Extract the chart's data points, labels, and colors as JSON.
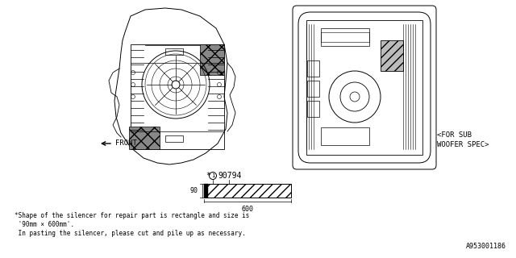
{
  "bg_color": "#ffffff",
  "spec_label_line1": "<FOR SUB",
  "spec_label_line2": "WOOFER SPEC>",
  "dim_width_label": "600",
  "dim_height_label": "90",
  "part_number_text": "*(1)90794",
  "front_label": "FRONT",
  "note_line1": "*Shape of the silencer for repair part is rectangle and size is",
  "note_line2": " '90mm × 600mm'.",
  "note_line3": " In pasting the silencer, please cut and pile up as necessary.",
  "catalog_number": "A953001186",
  "line_color": "#000000",
  "text_color": "#000000"
}
